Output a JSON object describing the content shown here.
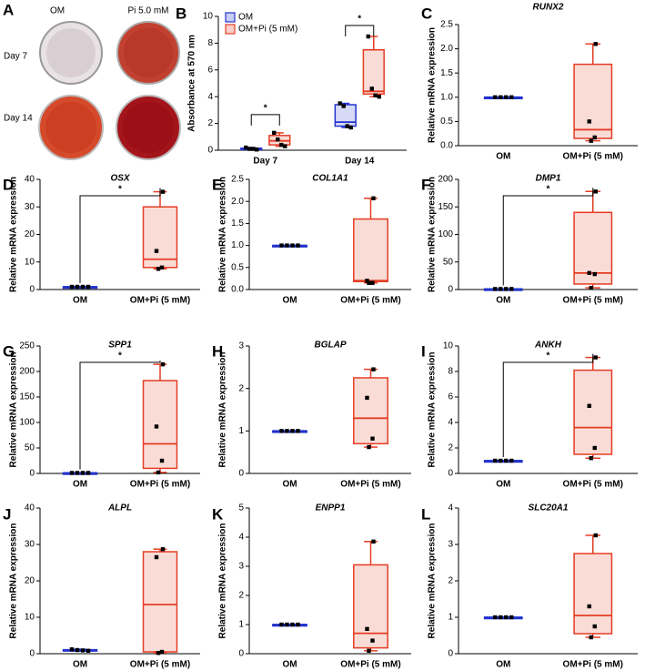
{
  "photo_panel": {
    "panel": "A",
    "columns": [
      "OM",
      "Pi 5.0 mM"
    ],
    "rows": [
      "Day 7",
      "Day 14"
    ]
  },
  "chart_data": [
    {
      "type": "box",
      "panel": "B",
      "ylabel": "Absorbance at 570 nm",
      "categories": [
        "Day 7",
        "Day 14"
      ],
      "ylim": [
        0,
        10
      ],
      "yticks": [
        0,
        2,
        4,
        6,
        8,
        10
      ],
      "legend": "upper left",
      "annotations": [
        "*",
        "*"
      ],
      "series": [
        {
          "name": "OM",
          "color": "#2233cc",
          "boxes": [
            {
              "min": 0.05,
              "q1": 0.08,
              "median": 0.1,
              "q3": 0.15,
              "max": 0.2,
              "points": [
                0.2,
                0.1,
                0.1,
                0.05
              ]
            },
            {
              "min": 1.7,
              "q1": 1.8,
              "median": 2.1,
              "q3": 3.4,
              "max": 3.5,
              "points": [
                3.5,
                3.3,
                1.8,
                1.7
              ]
            }
          ]
        },
        {
          "name": "OM+Pi (5 mM)",
          "color": "#e53c23",
          "boxes": [
            {
              "min": 0.3,
              "q1": 0.4,
              "median": 0.7,
              "q3": 1.1,
              "max": 1.3,
              "points": [
                1.3,
                0.8,
                0.4,
                0.3
              ]
            },
            {
              "min": 4.0,
              "q1": 4.2,
              "median": 4.4,
              "q3": 7.5,
              "max": 8.5,
              "points": [
                8.5,
                4.6,
                4.1,
                4.0
              ]
            }
          ]
        }
      ]
    },
    {
      "type": "box",
      "panel": "C",
      "title": "RUNX2",
      "ylabel": "Relative mRNA expression",
      "categories": [
        "OM",
        "OM+Pi (5 mM)"
      ],
      "ylim": [
        0,
        2.5
      ],
      "yticks": [
        {
          "value": 0,
          "label": "0.0"
        },
        0.5,
        {
          "value": 1,
          "label": "1.0"
        },
        1.5,
        {
          "value": 2,
          "label": "2.0"
        },
        2.5
      ],
      "boxes": [
        {
          "color": "#2233cc",
          "min": 1,
          "q1": 1,
          "median": 1,
          "q3": 1,
          "max": 1,
          "points": [
            1,
            1,
            1,
            1
          ]
        },
        {
          "color": "#e53c23",
          "min": 0.1,
          "q1": 0.15,
          "median": 0.33,
          "q3": 1.68,
          "max": 2.1,
          "points": [
            2.1,
            0.5,
            0.17,
            0.1
          ]
        }
      ]
    },
    {
      "type": "box",
      "panel": "D",
      "title": "OSX",
      "ylabel": "Relative mRNA expression",
      "categories": [
        "OM",
        "OM+Pi (5 mM)"
      ],
      "ylim": [
        0,
        40
      ],
      "yticks": [
        0,
        10,
        20,
        30,
        40
      ],
      "annotation": "*",
      "boxes": [
        {
          "color": "#2233cc",
          "min": 1,
          "q1": 1,
          "median": 1,
          "q3": 1,
          "max": 1,
          "points": [
            1,
            1,
            1,
            1
          ]
        },
        {
          "color": "#e53c23",
          "min": 7.5,
          "q1": 8,
          "median": 11,
          "q3": 30,
          "max": 35.5,
          "points": [
            35.5,
            14,
            8,
            7.5
          ]
        }
      ]
    },
    {
      "type": "box",
      "panel": "E",
      "title": "COL1A1",
      "ylabel": "Relative mRNA expression",
      "categories": [
        "OM",
        "OM+Pi (5 mM)"
      ],
      "ylim": [
        0,
        2.5
      ],
      "yticks": [
        {
          "value": 0,
          "label": "0.0"
        },
        0.5,
        {
          "value": 1,
          "label": "1.0"
        },
        1.5,
        {
          "value": 2,
          "label": "2.0"
        },
        2.5
      ],
      "boxes": [
        {
          "color": "#2233cc",
          "min": 1,
          "q1": 1,
          "median": 1,
          "q3": 1,
          "max": 1,
          "points": [
            1,
            1,
            1,
            1
          ]
        },
        {
          "color": "#e53c23",
          "min": 0.15,
          "q1": 0.18,
          "median": 0.2,
          "q3": 1.6,
          "max": 2.07,
          "points": [
            2.07,
            0.2,
            0.15,
            0.15
          ]
        }
      ]
    },
    {
      "type": "box",
      "panel": "F",
      "title": "DMP1",
      "ylabel": "Relative mRNA expression",
      "categories": [
        "OM",
        "OM+Pi (5 mM)"
      ],
      "ylim": [
        0,
        200
      ],
      "yticks": [
        0,
        50,
        100,
        150,
        200
      ],
      "annotation": "*",
      "boxes": [
        {
          "color": "#2233cc",
          "min": 1,
          "q1": 1,
          "median": 1,
          "q3": 1,
          "max": 1,
          "points": [
            1,
            1,
            1,
            1
          ]
        },
        {
          "color": "#e53c23",
          "min": 3,
          "q1": 10,
          "median": 30,
          "q3": 140,
          "max": 178,
          "points": [
            178,
            30,
            28,
            3
          ]
        }
      ]
    },
    {
      "type": "box",
      "panel": "G",
      "title": "SPP1",
      "ylabel": "Relative mRNA expression",
      "categories": [
        "OM",
        "OM+Pi (5 mM)"
      ],
      "ylim": [
        0,
        250
      ],
      "yticks": [
        0,
        50,
        100,
        150,
        200,
        250
      ],
      "annotation": "*",
      "boxes": [
        {
          "color": "#2233cc",
          "min": 1,
          "q1": 1,
          "median": 1,
          "q3": 1,
          "max": 1,
          "points": [
            1,
            1,
            1,
            1
          ]
        },
        {
          "color": "#e53c23",
          "min": 2,
          "q1": 10,
          "median": 58,
          "q3": 182,
          "max": 214,
          "points": [
            214,
            92,
            25,
            2
          ]
        }
      ]
    },
    {
      "type": "box",
      "panel": "H",
      "title": "BGLAP",
      "ylabel": "Relative mRNA expression",
      "categories": [
        "OM",
        "OM+Pi (5 mM)"
      ],
      "ylim": [
        0,
        3
      ],
      "yticks": [
        0,
        1,
        2,
        3
      ],
      "boxes": [
        {
          "color": "#2233cc",
          "min": 1,
          "q1": 1,
          "median": 1,
          "q3": 1,
          "max": 1,
          "points": [
            1,
            1,
            1,
            1
          ]
        },
        {
          "color": "#e53c23",
          "min": 0.62,
          "q1": 0.7,
          "median": 1.3,
          "q3": 2.25,
          "max": 2.45,
          "points": [
            2.45,
            1.78,
            0.82,
            0.62
          ]
        }
      ]
    },
    {
      "type": "box",
      "panel": "I",
      "title": "ANKH",
      "ylabel": "Relative mRNA expression",
      "categories": [
        "OM",
        "OM+Pi (5 mM)"
      ],
      "ylim": [
        0,
        10
      ],
      "yticks": [
        0,
        2,
        4,
        6,
        8,
        10
      ],
      "annotation": "*",
      "boxes": [
        {
          "color": "#2233cc",
          "min": 1,
          "q1": 1,
          "median": 1,
          "q3": 1,
          "max": 1,
          "points": [
            1,
            1,
            1,
            1
          ]
        },
        {
          "color": "#e53c23",
          "min": 1.2,
          "q1": 1.5,
          "median": 3.6,
          "q3": 8.1,
          "max": 9.1,
          "points": [
            9.1,
            5.3,
            2.0,
            1.2
          ]
        }
      ]
    },
    {
      "type": "box",
      "panel": "J",
      "title": "ALPL",
      "ylabel": "Relative mRNA expression",
      "categories": [
        "OM",
        "OM+Pi (5 mM)"
      ],
      "ylim": [
        0,
        40
      ],
      "yticks": [
        0,
        10,
        20,
        30,
        40
      ],
      "boxes": [
        {
          "color": "#2233cc",
          "min": 0.8,
          "q1": 0.9,
          "median": 1,
          "q3": 1.1,
          "max": 1.2,
          "points": [
            1.2,
            1,
            0.9,
            0.8
          ]
        },
        {
          "color": "#e53c23",
          "min": 0.2,
          "q1": 0.5,
          "median": 13.5,
          "q3": 28,
          "max": 28.7,
          "points": [
            28.7,
            26.5,
            0.5,
            0.2
          ]
        }
      ]
    },
    {
      "type": "box",
      "panel": "K",
      "title": "ENPP1",
      "ylabel": "Relative mRNA expression",
      "categories": [
        "OM",
        "OM+Pi (5 mM)"
      ],
      "ylim": [
        0,
        5
      ],
      "yticks": [
        0,
        1,
        2,
        3,
        4,
        5
      ],
      "boxes": [
        {
          "color": "#2233cc",
          "min": 1,
          "q1": 1,
          "median": 1,
          "q3": 1,
          "max": 1,
          "points": [
            1,
            1,
            1,
            1
          ]
        },
        {
          "color": "#e53c23",
          "min": 0.1,
          "q1": 0.2,
          "median": 0.7,
          "q3": 3.05,
          "max": 3.85,
          "points": [
            3.85,
            0.85,
            0.45,
            0.1
          ]
        }
      ]
    },
    {
      "type": "box",
      "panel": "L",
      "title": "SLC20A1",
      "ylabel": "Relative mRNA expression",
      "categories": [
        "OM",
        "OM+Pi (5 mM)"
      ],
      "ylim": [
        0,
        4
      ],
      "yticks": [
        0,
        1,
        2,
        3,
        4
      ],
      "boxes": [
        {
          "color": "#2233cc",
          "min": 1,
          "q1": 1,
          "median": 1,
          "q3": 1,
          "max": 1,
          "points": [
            1,
            1,
            1,
            1
          ]
        },
        {
          "color": "#e53c23",
          "min": 0.45,
          "q1": 0.55,
          "median": 1.05,
          "q3": 2.75,
          "max": 3.25,
          "points": [
            3.25,
            1.3,
            0.75,
            0.45
          ]
        }
      ]
    }
  ]
}
